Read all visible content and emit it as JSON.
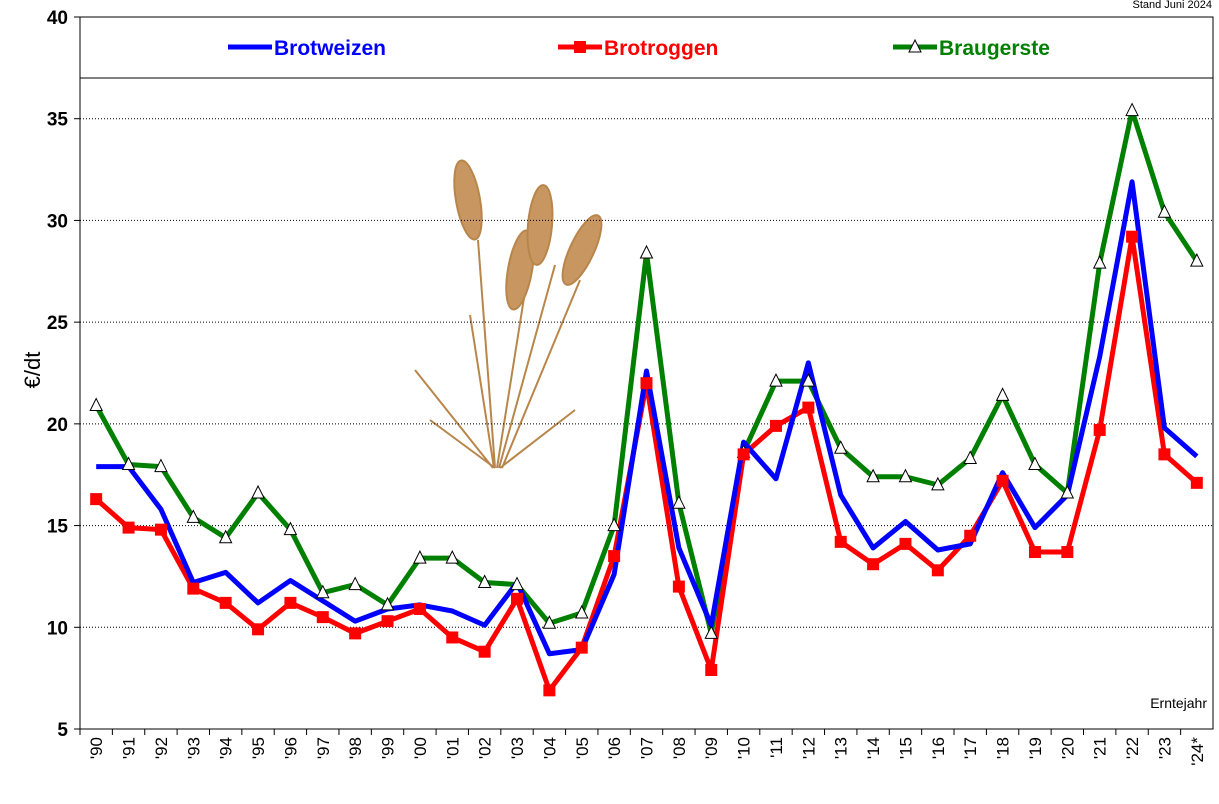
{
  "chart_data": {
    "type": "line",
    "note": "Stand Juni 2024",
    "y_label": "€/dt",
    "x_label": "Erntejahr",
    "categories": [
      "'90",
      "'91",
      "'92",
      "'93",
      "'94",
      "'95",
      "'96",
      "'97",
      "'98",
      "'99",
      "'00",
      "'01",
      "'02",
      "'03",
      "'04",
      "'05",
      "'06",
      "'07",
      "'08",
      "'09",
      "'10",
      "'11",
      "'12",
      "'13",
      "'14",
      "'15",
      "'16",
      "'17",
      "'18",
      "'19",
      "'20",
      "'21",
      "'22",
      "'23",
      "'24*"
    ],
    "ylim": [
      5,
      40
    ],
    "yticks": [
      5,
      10,
      15,
      20,
      25,
      30,
      35,
      40
    ],
    "grid": true,
    "series": [
      {
        "name": "Brotweizen",
        "color": "#0000ff",
        "marker": "none",
        "values": [
          17.9,
          17.9,
          15.8,
          12.2,
          12.7,
          11.2,
          12.3,
          11.3,
          10.3,
          10.9,
          11.1,
          10.8,
          10.1,
          12.2,
          8.7,
          8.9,
          12.6,
          22.6,
          13.9,
          10.1,
          19.1,
          17.3,
          23.0,
          16.5,
          13.9,
          15.2,
          13.8,
          14.1,
          17.6,
          14.9,
          16.5,
          23.3,
          31.9,
          19.8,
          18.4
        ]
      },
      {
        "name": "Brotroggen",
        "color": "#ff0000",
        "marker": "square",
        "values": [
          16.3,
          14.9,
          14.8,
          11.9,
          11.2,
          9.9,
          11.2,
          10.5,
          9.7,
          10.3,
          10.9,
          9.5,
          8.8,
          11.4,
          6.9,
          9.0,
          13.5,
          22.0,
          12.0,
          7.9,
          18.5,
          19.9,
          20.8,
          14.2,
          13.1,
          14.1,
          12.8,
          14.5,
          17.2,
          13.7,
          13.7,
          19.7,
          29.2,
          18.5,
          17.1
        ]
      },
      {
        "name": "Braugerste",
        "color": "#008000",
        "marker": "triangle",
        "values": [
          20.9,
          18.0,
          17.9,
          15.4,
          14.4,
          16.6,
          14.8,
          11.7,
          12.1,
          11.1,
          13.4,
          13.4,
          12.2,
          12.1,
          10.2,
          10.7,
          15.0,
          28.4,
          16.1,
          9.7,
          18.6,
          22.1,
          22.1,
          18.8,
          17.4,
          17.4,
          17.0,
          18.3,
          21.4,
          18.0,
          16.6,
          27.9,
          35.4,
          30.4,
          28.0
        ]
      }
    ]
  }
}
